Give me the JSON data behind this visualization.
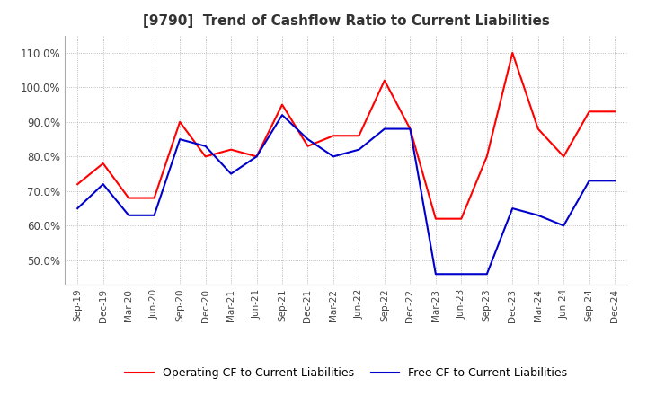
{
  "title": "[9790]  Trend of Cashflow Ratio to Current Liabilities",
  "title_fontsize": 11,
  "x_labels": [
    "Sep-19",
    "Dec-19",
    "Mar-20",
    "Jun-20",
    "Sep-20",
    "Dec-20",
    "Mar-21",
    "Jun-21",
    "Sep-21",
    "Dec-21",
    "Mar-22",
    "Jun-22",
    "Sep-22",
    "Dec-22",
    "Mar-23",
    "Jun-23",
    "Sep-23",
    "Dec-23",
    "Mar-24",
    "Jun-24",
    "Sep-24",
    "Dec-24"
  ],
  "operating_cf": [
    0.72,
    0.78,
    0.68,
    0.68,
    0.9,
    0.8,
    0.82,
    0.8,
    0.95,
    0.83,
    0.86,
    0.86,
    1.02,
    0.88,
    0.62,
    0.62,
    0.8,
    1.1,
    0.88,
    0.8,
    0.93,
    0.93
  ],
  "free_cf": [
    0.65,
    0.72,
    0.63,
    0.63,
    0.85,
    0.83,
    0.75,
    0.8,
    0.92,
    0.85,
    0.8,
    0.82,
    0.88,
    0.88,
    0.46,
    0.46,
    0.46,
    0.65,
    0.63,
    0.6,
    0.73,
    0.73
  ],
  "ylim": [
    0.43,
    1.15
  ],
  "yticks": [
    0.5,
    0.6,
    0.7,
    0.8,
    0.9,
    1.0,
    1.1
  ],
  "operating_color": "#ff0000",
  "free_color": "#0000cc",
  "grid_color": "#aaaaaa",
  "background_color": "#ffffff",
  "legend_labels": [
    "Operating CF to Current Liabilities",
    "Free CF to Current Liabilities"
  ]
}
